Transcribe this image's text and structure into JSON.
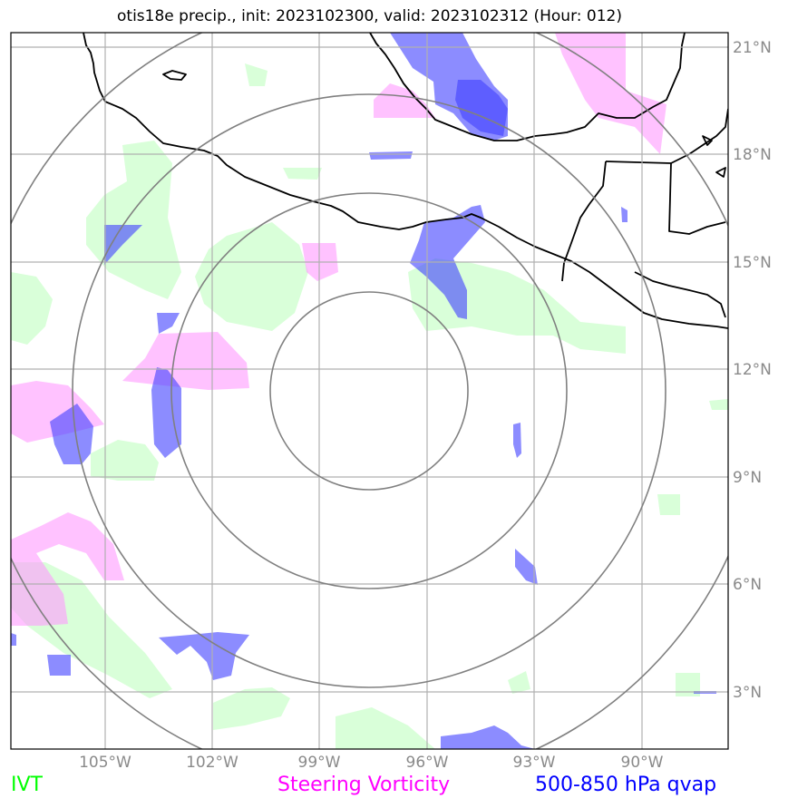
{
  "title": "otis18e precip., init: 2023102300, valid: 2023102312 (Hour: 012)",
  "longitude_labels": [
    "105°W",
    "102°W",
    "99°W",
    "96°W",
    "93°W",
    "90°W"
  ],
  "latitude_labels": [
    "21°N",
    "18°N",
    "15°N",
    "12°N",
    "9°N",
    "6°N",
    "3°N"
  ],
  "legend": [
    {
      "label": "IVT",
      "color": "#00ff00"
    },
    {
      "label": "Steering Vorticity",
      "color": "#ff00ff"
    },
    {
      "label": "500-850 hPa qvap",
      "color": "#0000ff"
    }
  ],
  "map": {
    "projection": "plate carree",
    "lon_range": [
      -107.6,
      -87.5
    ],
    "lat_range": [
      1.5,
      21.4
    ],
    "range_ring_center": {
      "lon": -97.6,
      "lat": 11.1
    },
    "range_rings_count": 4,
    "colors": {
      "ivt_fill": "#ccffcc",
      "vorticity_fill": "#ff99ff",
      "qvap_fill": "#4040ff",
      "coastline": "#000000",
      "grid": "#b0b0b0",
      "ring": "#808080"
    }
  }
}
